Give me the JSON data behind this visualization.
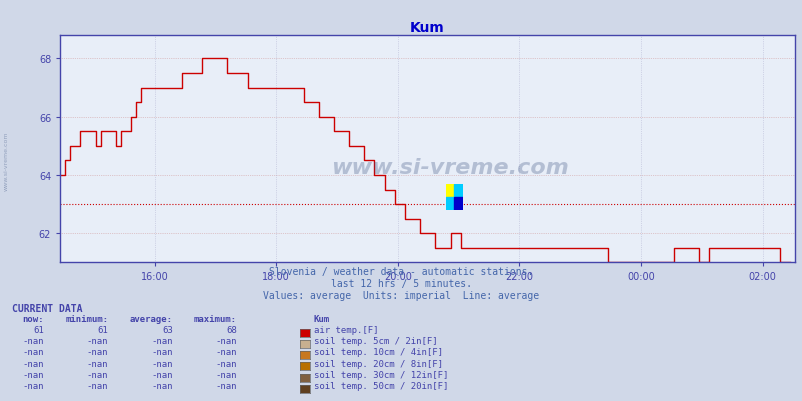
{
  "title": "Kum",
  "title_color": "#0000cc",
  "bg_color": "#d0d8e8",
  "plot_bg_color": "#e8eef8",
  "line_color": "#cc0000",
  "avg_line_color": "#cc0000",
  "avg_line_value": 63.0,
  "grid_color_red": "#cc8888",
  "grid_color_blue": "#aaaacc",
  "ylim": [
    61.0,
    68.8
  ],
  "yticks": [
    62,
    64,
    66,
    68
  ],
  "tick_color": "#4444aa",
  "watermark_color": "#3a5080",
  "subtitle1": "Slovenia / weather data - automatic stations.",
  "subtitle2": "last 12 hrs / 5 minutes.",
  "subtitle3": "Values: average  Units: imperial  Line: average",
  "subtitle_color": "#4466aa",
  "current_data_color": "#4444aa",
  "legend_items": [
    {
      "label": "air temp.[F]",
      "color": "#cc0000"
    },
    {
      "label": "soil temp. 5cm / 2in[F]",
      "color": "#c8b090"
    },
    {
      "label": "soil temp. 10cm / 4in[F]",
      "color": "#c87820"
    },
    {
      "label": "soil temp. 20cm / 8in[F]",
      "color": "#b87000"
    },
    {
      "label": "soil temp. 30cm / 12in[F]",
      "color": "#806040"
    },
    {
      "label": "soil temp. 50cm / 20in[F]",
      "color": "#604020"
    }
  ],
  "table_headers": [
    "now:",
    "minimum:",
    "average:",
    "maximum:",
    "Kum"
  ],
  "table_rows": [
    [
      "61",
      "61",
      "63",
      "68"
    ],
    [
      "-nan",
      "-nan",
      "-nan",
      "-nan"
    ],
    [
      "-nan",
      "-nan",
      "-nan",
      "-nan"
    ],
    [
      "-nan",
      "-nan",
      "-nan",
      "-nan"
    ],
    [
      "-nan",
      "-nan",
      "-nan",
      "-nan"
    ],
    [
      "-nan",
      "-nan",
      "-nan",
      "-nan"
    ]
  ],
  "xtick_labels": [
    "16:00",
    "18:00",
    "20:00",
    "22:00",
    "00:00",
    "02:00"
  ],
  "watermark": "www.si-vreme.com",
  "left_label": "www.si-vreme.com",
  "spine_color": "#4444aa",
  "temp_data": [
    64.0,
    64.5,
    65.0,
    65.0,
    65.5,
    65.5,
    65.5,
    65.0,
    65.5,
    65.5,
    65.5,
    65.0,
    65.5,
    65.5,
    66.0,
    66.5,
    67.0,
    67.0,
    67.0,
    67.0,
    67.0,
    67.0,
    67.0,
    67.0,
    67.5,
    67.5,
    67.5,
    67.5,
    68.0,
    68.0,
    68.0,
    68.0,
    68.0,
    67.5,
    67.5,
    67.5,
    67.5,
    67.0,
    67.0,
    67.0,
    67.0,
    67.0,
    67.0,
    67.0,
    67.0,
    67.0,
    67.0,
    67.0,
    66.5,
    66.5,
    66.5,
    66.0,
    66.0,
    66.0,
    65.5,
    65.5,
    65.5,
    65.0,
    65.0,
    65.0,
    64.5,
    64.5,
    64.0,
    64.0,
    63.5,
    63.5,
    63.0,
    63.0,
    62.5,
    62.5,
    62.5,
    62.0,
    62.0,
    62.0,
    61.5,
    61.5,
    61.5,
    62.0,
    62.0,
    61.5,
    61.5,
    61.5,
    61.5,
    61.5,
    61.5,
    61.5,
    61.5,
    61.5,
    61.5,
    61.5,
    61.5,
    61.5,
    61.5,
    61.5,
    61.5,
    61.5,
    61.5,
    61.5,
    61.5,
    61.5,
    61.5,
    61.5,
    61.5,
    61.5,
    61.5,
    61.5,
    61.5,
    61.5,
    61.0,
    61.0,
    61.0,
    61.0,
    61.0,
    61.0,
    61.0,
    61.0,
    61.0,
    61.0,
    61.0,
    61.0,
    61.0,
    61.5,
    61.5,
    61.5,
    61.5,
    61.5,
    61.0,
    61.0,
    61.5,
    61.5,
    61.5,
    61.5,
    61.5,
    61.5,
    61.5,
    61.5,
    61.5,
    61.5,
    61.5,
    61.5,
    61.5,
    61.5,
    61.0,
    61.0,
    61.0
  ]
}
